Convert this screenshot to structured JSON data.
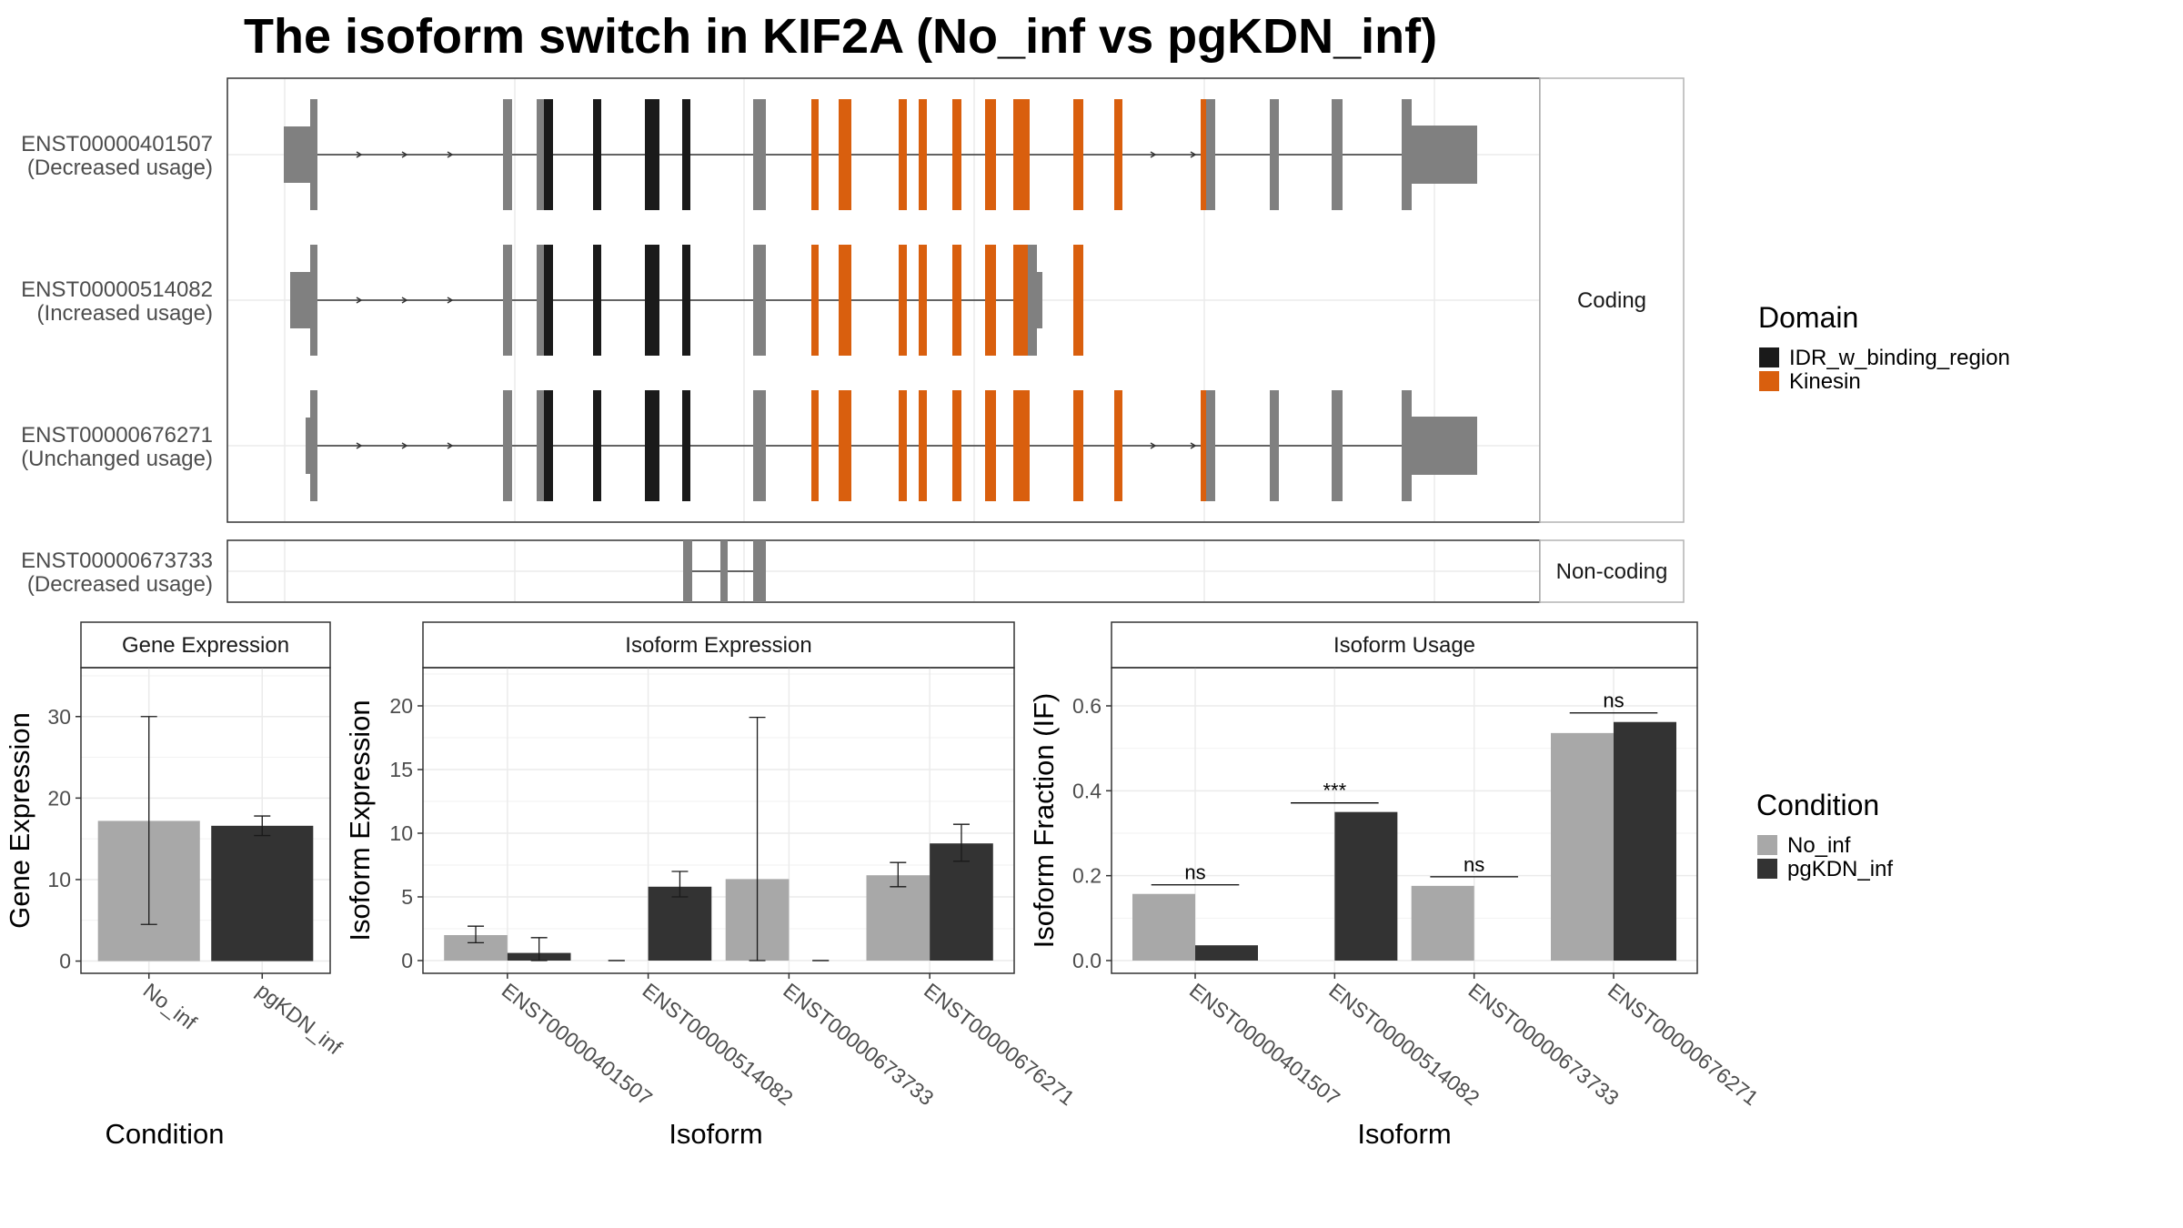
{
  "title": "The isoform switch in KIF2A (No_inf vs pgKDN_inf)",
  "colors": {
    "No_inf": "#a8a8a8",
    "pgKDN_inf": "#333333",
    "utr_exon": "#808080",
    "IDR_w_binding_region": "#1a1a1a",
    "Kinesin": "#d95f0e",
    "intron": "#333333"
  },
  "transcript_panel": {
    "coding_label": "Coding",
    "noncoding_label": "Non-coding",
    "transcripts": [
      {
        "id": "ENST00000401507",
        "usage": "(Decreased usage)",
        "group": "coding"
      },
      {
        "id": "ENST00000514082",
        "usage": "(Increased usage)",
        "group": "coding"
      },
      {
        "id": "ENST00000676271",
        "usage": "(Unchanged usage)",
        "group": "coding"
      },
      {
        "id": "ENST00000673733",
        "usage": "(Decreased usage)",
        "group": "noncoding"
      }
    ]
  },
  "domain_legend": {
    "title": "Domain",
    "items": [
      {
        "label": "IDR_w_binding_region",
        "color": "#1a1a1a"
      },
      {
        "label": "Kinesin",
        "color": "#d95f0e"
      }
    ]
  },
  "condition_legend": {
    "title": "Condition",
    "items": [
      {
        "label": "No_inf",
        "color": "#a8a8a8"
      },
      {
        "label": "pgKDN_inf",
        "color": "#333333"
      }
    ]
  },
  "chart_data": [
    {
      "type": "bar",
      "title": "Gene Expression",
      "xlabel": "Condition",
      "ylabel": "Gene Expression",
      "ylim": [
        -1.5,
        36
      ],
      "yticks": [
        0,
        10,
        20,
        30
      ],
      "categories": [
        "No_inf",
        "pgKDN_inf"
      ],
      "values": [
        17.2,
        16.6
      ],
      "errors": [
        [
          4.5,
          30.0
        ],
        [
          15.4,
          17.8
        ]
      ]
    },
    {
      "type": "bar",
      "title": "Isoform Expression",
      "xlabel": "Isoform",
      "ylabel": "Isoform Expression",
      "ylim": [
        -1,
        23
      ],
      "yticks": [
        0,
        5,
        10,
        15,
        20
      ],
      "categories": [
        "ENST00000401507",
        "ENST00000514082",
        "ENST00000673733",
        "ENST00000676271"
      ],
      "series": [
        {
          "name": "No_inf",
          "values": [
            2.0,
            0.0,
            6.4,
            6.7
          ],
          "errors": [
            [
              1.4,
              2.7
            ],
            [
              0.0,
              0.0
            ],
            [
              0.0,
              19.1
            ],
            [
              5.8,
              7.7
            ]
          ]
        },
        {
          "name": "pgKDN_inf",
          "values": [
            0.6,
            5.8,
            0.0,
            9.2
          ],
          "errors": [
            [
              0.0,
              1.8
            ],
            [
              5.0,
              7.0
            ],
            [
              0.0,
              0.0
            ],
            [
              7.8,
              10.7
            ]
          ]
        }
      ]
    },
    {
      "type": "bar",
      "title": "Isoform Usage",
      "xlabel": "Isoform",
      "ylabel": "Isoform Fraction (IF)",
      "ylim": [
        -0.03,
        0.69
      ],
      "yticks": [
        0.0,
        0.2,
        0.4,
        0.6
      ],
      "categories": [
        "ENST00000401507",
        "ENST00000514082",
        "ENST00000673733",
        "ENST00000676271"
      ],
      "series": [
        {
          "name": "No_inf",
          "values": [
            0.157,
            0.0,
            0.176,
            0.536
          ]
        },
        {
          "name": "pgKDN_inf",
          "values": [
            0.036,
            0.35,
            0.0,
            0.562
          ]
        }
      ],
      "significance": [
        "ns",
        "***",
        "ns",
        "ns"
      ]
    }
  ]
}
